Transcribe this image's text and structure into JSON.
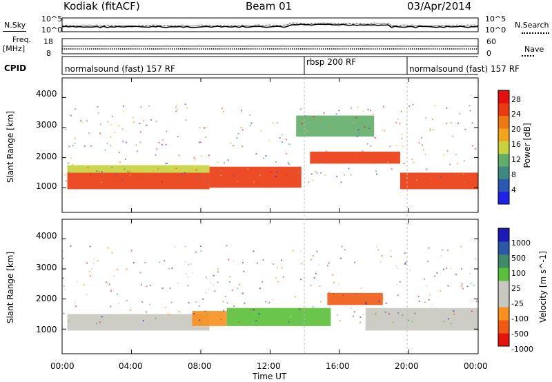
{
  "header": {
    "station": "Kodiak (fitACF)",
    "beam": "Beam 01",
    "date": "03/Apr/2014"
  },
  "strips": {
    "nsky": {
      "label": "N.Sky",
      "ticks_left": [
        "10^5",
        "10^0"
      ],
      "ticks_right": [
        "10^5",
        "10^0"
      ],
      "right_label": "N.Search"
    },
    "freq": {
      "label_line1": "Freq.",
      "label_line2": "[MHz]",
      "ticks_left": [
        "18",
        "8"
      ],
      "ticks_right": [
        "60",
        "0"
      ],
      "right_label": "Nave"
    },
    "cpid": {
      "label": "CPID",
      "segments": [
        "normalsound (fast) 157 RF",
        "rbsp 200 RF",
        "normalsound (fast) 157 RF"
      ]
    }
  },
  "x_axis": {
    "label": "Time UT",
    "ticks": [
      "00:00",
      "04:00",
      "08:00",
      "12:00",
      "16:00",
      "20:00",
      "00:00"
    ]
  },
  "colors": {
    "power_scale": [
      "#1e22e6",
      "#2a58b2",
      "#3f8a7e",
      "#62ad6a",
      "#c8d23c",
      "#f2a51c",
      "#f07814",
      "#ea3a10",
      "#e60f0f"
    ],
    "velocity_scale": [
      "#1a1ab4",
      "#2c58a6",
      "#3f8a6a",
      "#5abf3a",
      "#c8c8c0",
      "#c8c8c0",
      "#f7901e",
      "#f05a14",
      "#e6140c"
    ],
    "ground_scatter": "#c8c8c0"
  },
  "chart_data": [
    {
      "type": "heatmap",
      "title": "",
      "ylabel": "Slant Range [km]",
      "xlabel": "",
      "x_range_hours": [
        0,
        24
      ],
      "ylim": [
        180,
        4650
      ],
      "y_ticks": [
        "1000",
        "2000",
        "3000",
        "4000"
      ],
      "colorbar": {
        "label": "Power [dB]",
        "ticks": [
          "28",
          "24",
          "20",
          "16",
          "12",
          "8",
          "4"
        ],
        "range": [
          0,
          30
        ]
      },
      "echo_bands": [
        {
          "t0": 0.3,
          "t1": 8.5,
          "r0": 950,
          "r1": 1500,
          "level": 26
        },
        {
          "t0": 0.3,
          "t1": 8.5,
          "r0": 1500,
          "r1": 1750,
          "level": 14
        },
        {
          "t0": 8.5,
          "t1": 13.8,
          "r0": 1000,
          "r1": 1700,
          "level": 26
        },
        {
          "t0": 14.3,
          "t1": 19.5,
          "r0": 1800,
          "r1": 2200,
          "level": 25
        },
        {
          "t0": 19.5,
          "t1": 24,
          "r0": 950,
          "r1": 1500,
          "level": 26
        },
        {
          "t0": 13.5,
          "t1": 18,
          "r0": 2700,
          "r1": 3400,
          "level": 10
        }
      ]
    },
    {
      "type": "heatmap",
      "title": "",
      "ylabel": "Slant Range [km]",
      "xlabel": "Time UT",
      "x_range_hours": [
        0,
        24
      ],
      "ylim": [
        180,
        4650
      ],
      "y_ticks": [
        "1000",
        "2000",
        "3000",
        "4000"
      ],
      "colorbar": {
        "label": "Velocity [m s^-1]",
        "ticks": [
          "1000",
          "500",
          "100",
          "25",
          "-25",
          "-100",
          "-500",
          "-1000"
        ]
      },
      "echo_bands": [
        {
          "t0": 0.3,
          "t1": 8.5,
          "r0": 950,
          "r1": 1500,
          "class": "ground"
        },
        {
          "t0": 7.5,
          "t1": 9.5,
          "r0": 1100,
          "r1": 1600,
          "class": "-100"
        },
        {
          "t0": 9.5,
          "t1": 15.5,
          "r0": 1100,
          "r1": 1700,
          "class": "100"
        },
        {
          "t0": 15.3,
          "t1": 18.5,
          "r0": 1800,
          "r1": 2200,
          "class": "-500"
        },
        {
          "t0": 17.5,
          "t1": 24,
          "r0": 950,
          "r1": 1700,
          "class": "ground"
        }
      ]
    }
  ]
}
